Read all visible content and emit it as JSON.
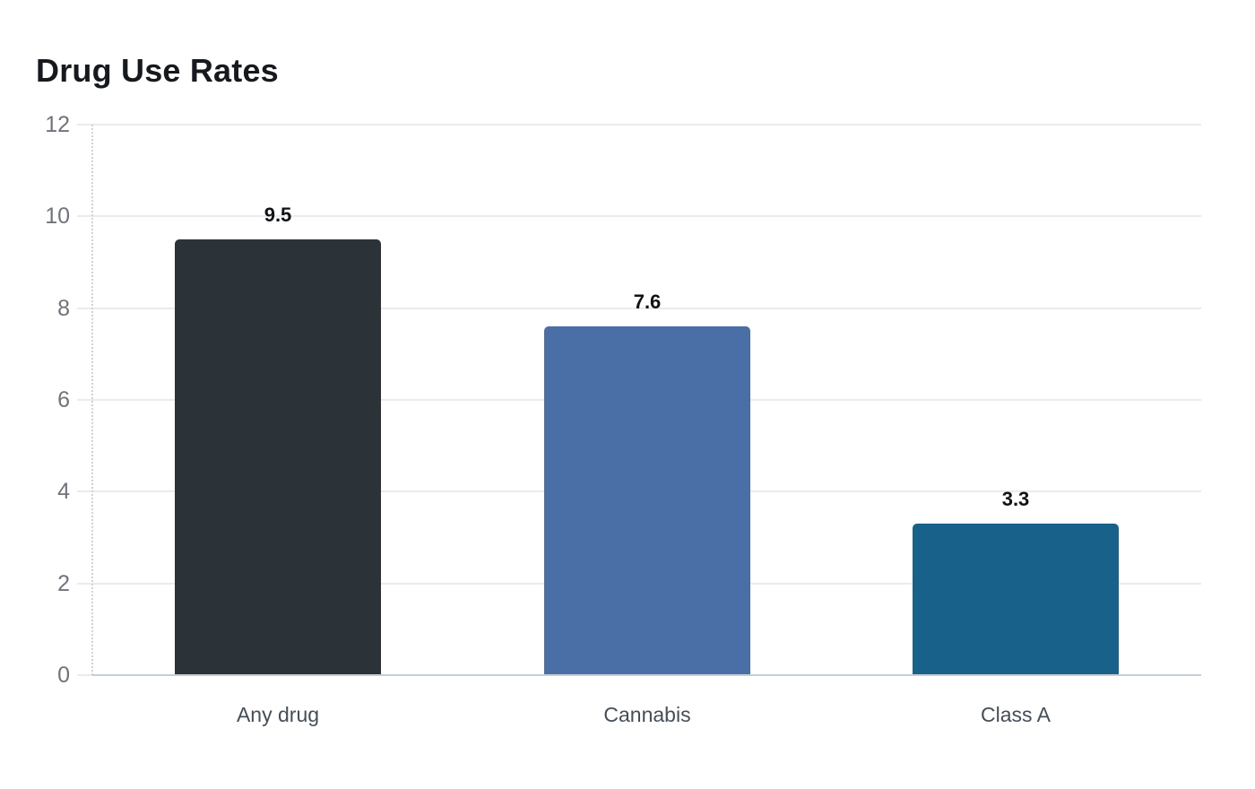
{
  "chart_data": {
    "type": "bar",
    "title": "Drug Use Rates",
    "categories": [
      "Any drug",
      "Cannabis",
      "Class A"
    ],
    "values": [
      9.5,
      7.6,
      3.3
    ],
    "data_labels": [
      "9.5",
      "7.6",
      "3.3"
    ],
    "bar_colors": [
      "#2b3338",
      "#4a6fa6",
      "#17618b"
    ],
    "xlabel": "",
    "ylabel": "",
    "ylim": [
      0,
      12
    ],
    "yticks": [
      0,
      2,
      4,
      6,
      8,
      10,
      12
    ],
    "grid": "horizontal",
    "legend_position": "none"
  },
  "colors": {
    "background": "#ffffff",
    "title": "#16191e",
    "tick_label": "#6e747a",
    "category_label": "#444e58",
    "data_label": "#101215",
    "gridline": "#e9ebed",
    "axis_line": "#c5ced5",
    "y_axis_dotted": "#ced3d8"
  }
}
